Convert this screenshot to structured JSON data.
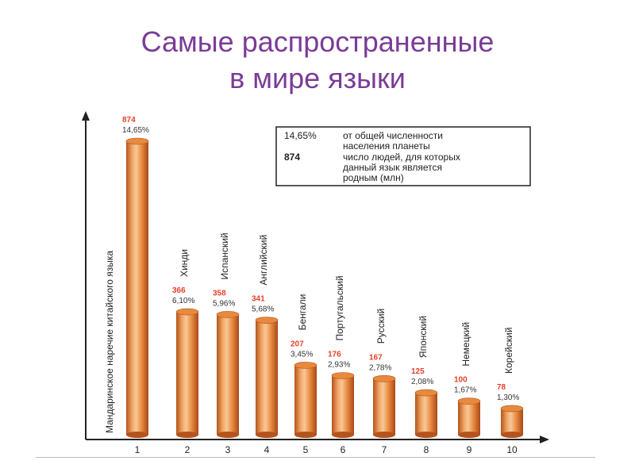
{
  "slide": {
    "title_line1": "Самые распространенные",
    "title_line2": "в мире языки"
  },
  "legend": {
    "percent_key": "14,65%",
    "percent_text_line1": "от общей численности",
    "percent_text_line2": "населения планеты",
    "number_key": "874",
    "number_text_line1": "число людей, для которых",
    "number_text_line2": "данный язык является",
    "number_text_line3": "родным (млн)"
  },
  "colors": {
    "title": "#7a3c96",
    "value_label": "#e8412a",
    "bar_light": "#f7c79a",
    "bar_mid": "#e88a3e",
    "bar_dark": "#b4541c"
  },
  "chart_data": {
    "type": "bar",
    "title": "",
    "xlabel": "",
    "ylabel": "",
    "categories": [
      "1",
      "2",
      "3",
      "4",
      "5",
      "6",
      "7",
      "8",
      "9",
      "10"
    ],
    "names": [
      "Мандаринское наречие китайского языка",
      "Хинди",
      "Испанский",
      "Английский",
      "Бенгали",
      "Португальский",
      "Русский",
      "Японский",
      "Немецкий",
      "Корейский"
    ],
    "values": [
      874,
      366,
      358,
      341,
      207,
      176,
      167,
      125,
      100,
      78
    ],
    "percent_labels": [
      "14,65%",
      "6,10%",
      "5,96%",
      "5,68%",
      "3,45%",
      "2,93%",
      "2,78%",
      "2,08%",
      "1,67%",
      "1,30%"
    ],
    "ylim": [
      0,
      1000
    ],
    "grid": false,
    "legend_position": "top-right"
  }
}
